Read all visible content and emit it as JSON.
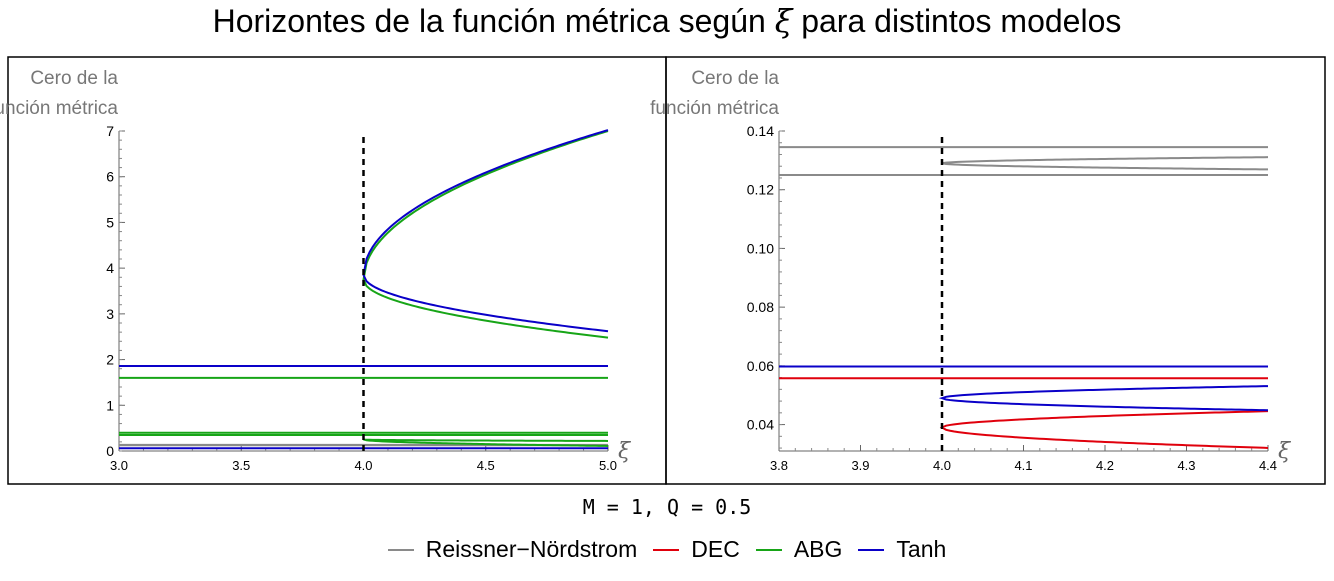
{
  "title": {
    "text_before": "Horizontes de la función métrica según ",
    "symbol": "ξ",
    "text_after": " para distintos modelos"
  },
  "parameters_text": "M = 1, Q = 0.5",
  "legend": [
    {
      "label": "Reissner−Nördstrom",
      "color": "#8a8a8a"
    },
    {
      "label": "DEC",
      "color": "#e0000c"
    },
    {
      "label": "ABG",
      "color": "#17a517"
    },
    {
      "label": "Tanh",
      "color": "#0a00c8"
    }
  ],
  "chart_data": [
    {
      "type": "line",
      "ylabel": [
        "Cero de la",
        "función métrica"
      ],
      "xlabel": "ξ",
      "xlim": [
        3.0,
        5.0
      ],
      "ylim": [
        0,
        7
      ],
      "xticks": [
        "3.0",
        "3.5",
        "4.0",
        "4.5",
        "5.0"
      ],
      "yticks": [
        "0",
        "1",
        "2",
        "3",
        "4",
        "5",
        "6",
        "7"
      ],
      "vertical_line_x": 4.0,
      "series": [
        {
          "name": "Reissner−Nördstrom",
          "color": "#8a8a8a",
          "kind": "constant",
          "values": [
            0.134,
            0.125
          ]
        },
        {
          "name": "ABG",
          "color": "#17a517",
          "kind": "constant",
          "values": [
            1.6,
            0.4,
            0.35
          ]
        },
        {
          "name": "ABG",
          "color": "#17a517",
          "kind": "sqrt_branch",
          "x0": 4.0,
          "y0": 3.75,
          "k_upper": 3.25,
          "k_lower": -1.27
        },
        {
          "name": "ABG",
          "color": "#17a517",
          "kind": "sqrt_branch",
          "x0": 4.0,
          "y0": 0.25,
          "k_upper": -0.03,
          "k_lower": -0.14
        },
        {
          "name": "Tanh",
          "color": "#0a00c8",
          "kind": "constant",
          "values": [
            1.86,
            0.06
          ]
        },
        {
          "name": "Tanh",
          "color": "#0a00c8",
          "kind": "sqrt_branch",
          "x0": 4.0,
          "y0": 3.85,
          "k_upper": 3.17,
          "k_lower": -1.23
        }
      ]
    },
    {
      "type": "line",
      "ylabel": [
        "Cero de la",
        "función métrica"
      ],
      "xlabel": "ξ",
      "xlim": [
        3.8,
        4.4
      ],
      "ylim": [
        0.031,
        0.14
      ],
      "xticks": [
        "3.8",
        "3.9",
        "4.0",
        "4.1",
        "4.2",
        "4.3",
        "4.4"
      ],
      "yticks": [
        "0.04",
        "0.06",
        "0.08",
        "0.10",
        "0.12",
        "0.14"
      ],
      "vertical_line_x": 4.0,
      "series": [
        {
          "name": "Reissner−Nördstrom",
          "color": "#8a8a8a",
          "kind": "constant",
          "values": [
            0.1345,
            0.125
          ]
        },
        {
          "name": "Reissner−Nördstrom",
          "color": "#8a8a8a",
          "kind": "sqrt_branch",
          "x0": 4.0,
          "y0": 0.129,
          "k_upper": 0.0033,
          "k_lower": -0.0033
        },
        {
          "name": "DEC",
          "color": "#e0000c",
          "kind": "constant",
          "values": [
            0.0558
          ]
        },
        {
          "name": "DEC",
          "color": "#e0000c",
          "kind": "sqrt_branch",
          "x0": 4.0,
          "y0": 0.039,
          "k_upper": 0.0088,
          "k_lower": -0.011
        },
        {
          "name": "Tanh",
          "color": "#0a00c8",
          "kind": "constant",
          "values": [
            0.0598
          ]
        },
        {
          "name": "Tanh",
          "color": "#0a00c8",
          "kind": "sqrt_branch",
          "x0": 4.0,
          "y0": 0.049,
          "k_upper": 0.0065,
          "k_lower": -0.0065
        }
      ]
    }
  ]
}
